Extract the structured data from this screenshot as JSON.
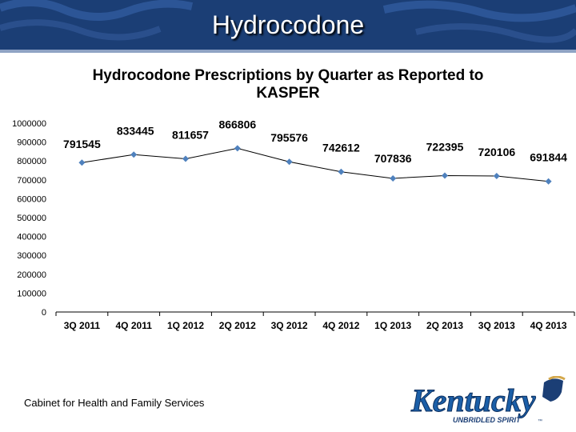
{
  "slide_title": "Hydrocodone",
  "footer_text": "Cabinet for Health and Family Services",
  "logo": {
    "name": "Kentucky",
    "tagline": "UNBRIDLED SPIRIT",
    "tm": "™"
  },
  "colors": {
    "banner": "#1b3e75",
    "line": "#000000",
    "marker": "#4f81bd"
  },
  "chart_data": {
    "type": "line",
    "title": "Hydrocodone Prescriptions by Quarter as Reported to KASPER",
    "title_lines": [
      "Hydrocodone Prescriptions by Quarter as Reported to",
      "KASPER"
    ],
    "categories": [
      "3Q 2011",
      "4Q 2011",
      "1Q 2012",
      "2Q 2012",
      "3Q 2012",
      "4Q 2012",
      "1Q 2013",
      "2Q 2013",
      "3Q 2013",
      "4Q 2013"
    ],
    "values": [
      791545,
      833445,
      811657,
      866806,
      795576,
      742612,
      707836,
      722395,
      720106,
      691844
    ],
    "data_labels": [
      "791545",
      "833445",
      "811657",
      "866806",
      "795576",
      "742612",
      "707836",
      "722395",
      "720106",
      "691844"
    ],
    "yticks": [
      0,
      100000,
      200000,
      300000,
      400000,
      500000,
      600000,
      700000,
      800000,
      900000,
      1000000
    ],
    "ytick_labels": [
      "0",
      "100000",
      "200000",
      "300000",
      "400000",
      "500000",
      "600000",
      "700000",
      "800000",
      "900000",
      "1000000"
    ],
    "ylim": [
      0,
      1000000
    ],
    "xlabel": "",
    "ylabel": "",
    "grid": false,
    "legend": false
  }
}
